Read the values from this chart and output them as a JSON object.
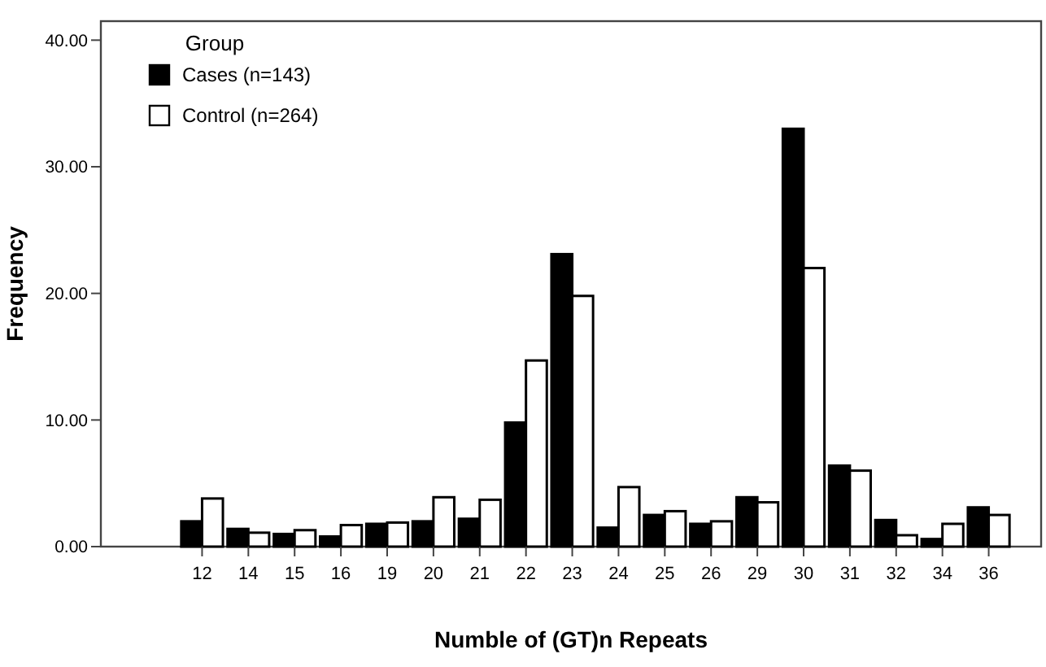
{
  "chart_data": {
    "type": "bar",
    "xlabel": "Numble of (GT)n Repeats",
    "ylabel": "Frequency",
    "legend_title": "Group",
    "legend": "top left",
    "grid": false,
    "categories": [
      "12",
      "14",
      "15",
      "16",
      "19",
      "20",
      "21",
      "22",
      "23",
      "24",
      "25",
      "26",
      "29",
      "30",
      "31",
      "32",
      "34",
      "36"
    ],
    "series": [
      {
        "name": "Cases (n=143)",
        "color": "#000000",
        "values": [
          2.0,
          1.4,
          1.0,
          0.8,
          1.8,
          2.0,
          2.2,
          9.8,
          23.1,
          1.5,
          2.5,
          1.8,
          3.9,
          33.0,
          6.4,
          2.1,
          0.6,
          3.1
        ]
      },
      {
        "name": "Control (n=264)",
        "color": "#ffffff",
        "values": [
          3.8,
          1.1,
          1.3,
          1.7,
          1.9,
          3.9,
          3.7,
          14.7,
          19.8,
          4.7,
          2.8,
          2.0,
          3.5,
          22.0,
          6.0,
          0.9,
          1.8,
          2.5
        ]
      }
    ],
    "ylim": [
      0,
      41.5
    ],
    "yticks": [
      {
        "value": 0,
        "label": "0.00"
      },
      {
        "value": 10,
        "label": "10.00"
      },
      {
        "value": 20,
        "label": "20.00"
      },
      {
        "value": 30,
        "label": "30.00"
      },
      {
        "value": 40,
        "label": "40.00"
      }
    ]
  }
}
